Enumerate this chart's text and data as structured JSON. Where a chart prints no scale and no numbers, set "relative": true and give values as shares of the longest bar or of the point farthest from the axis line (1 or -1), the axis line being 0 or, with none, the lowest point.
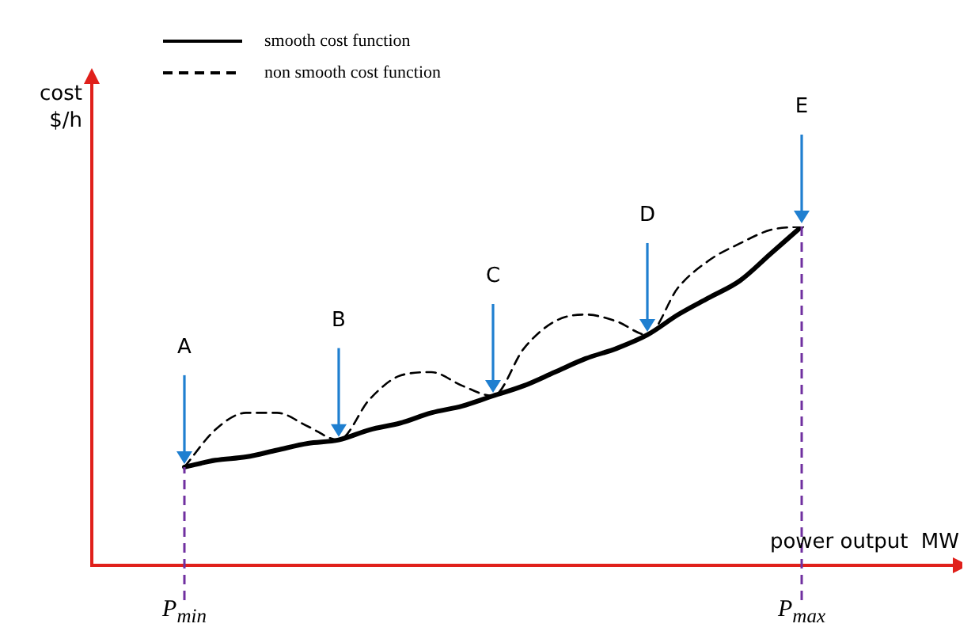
{
  "chart_data": {
    "type": "line",
    "relative": true,
    "xlabel": "power output  MW",
    "ylabel": "cost\n$/h",
    "legend": "top left",
    "categories": [
      null,
      null,
      null,
      "P$_{min}$",
      null,
      null,
      null,
      null,
      null,
      null,
      null,
      null,
      null,
      null,
      null,
      null,
      null,
      null,
      null,
      null,
      null,
      null,
      null,
      "P$_{max}$",
      null,
      null,
      null,
      null,
      null
    ],
    "series": [
      {
        "name": "smooth cost function",
        "color": "#000000",
        "line_style": "solid",
        "values": [
          null,
          null,
          null,
          0.29,
          0.31,
          0.32,
          0.34,
          0.36,
          0.37,
          0.4,
          0.42,
          0.45,
          0.47,
          0.5,
          0.53,
          0.57,
          0.61,
          0.64,
          0.68,
          0.74,
          0.79,
          0.84,
          0.92,
          1.0,
          null,
          null,
          null,
          null,
          null
        ]
      },
      {
        "name": "non smooth cost function",
        "color": "#000000",
        "line_style": "dashed",
        "values": [
          null,
          null,
          null,
          0.29,
          0.4,
          0.45,
          0.45,
          0.41,
          0.37,
          0.49,
          0.56,
          0.57,
          0.53,
          0.5,
          0.64,
          0.72,
          0.74,
          0.72,
          0.68,
          0.82,
          0.9,
          0.95,
          0.99,
          1.0,
          null,
          null,
          null,
          null,
          null
        ]
      }
    ],
    "ref_lines": [
      {
        "axis": "x",
        "value": "P$_{min}$",
        "color": "#7030a0",
        "line_style": "dashed"
      },
      {
        "axis": "x",
        "value": "P$_{max}$",
        "color": "#7030a0",
        "line_style": "dashed"
      }
    ],
    "annotations": [
      "A",
      "B",
      "C",
      "D",
      "E"
    ]
  }
}
